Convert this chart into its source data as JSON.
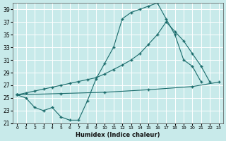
{
  "xlabel": "Humidex (Indice chaleur)",
  "bg_color": "#c8eaea",
  "grid_color": "#ffffff",
  "line_color": "#1a6b6b",
  "xlim_min": -0.5,
  "xlim_max": 23.5,
  "ylim_min": 21,
  "ylim_max": 40,
  "yticks": [
    21,
    23,
    25,
    27,
    29,
    31,
    33,
    35,
    37,
    39
  ],
  "xticks": [
    0,
    1,
    2,
    3,
    4,
    5,
    6,
    7,
    8,
    9,
    10,
    11,
    12,
    13,
    14,
    15,
    16,
    17,
    18,
    19,
    20,
    21,
    22,
    23
  ],
  "curve_x": [
    0,
    1,
    2,
    3,
    4,
    5,
    6,
    7,
    8,
    9,
    10,
    11,
    12,
    13,
    14,
    15,
    16,
    17,
    18,
    19,
    20,
    21
  ],
  "curve_y": [
    25.5,
    25.0,
    23.5,
    23.0,
    23.5,
    22.0,
    21.5,
    21.5,
    24.5,
    28.0,
    30.5,
    33.0,
    37.5,
    38.5,
    39.0,
    39.5,
    40.0,
    37.5,
    35.0,
    31.0,
    30.0,
    27.5
  ],
  "diag_x": [
    0,
    1,
    2,
    3,
    4,
    5,
    6,
    7,
    8,
    9,
    10,
    11,
    12,
    13,
    14,
    15,
    16,
    17,
    18,
    19,
    20,
    21,
    22
  ],
  "diag_y": [
    25.5,
    25.8,
    26.1,
    26.4,
    26.7,
    27.0,
    27.3,
    27.6,
    27.9,
    28.2,
    28.8,
    29.5,
    30.2,
    31.0,
    32.0,
    33.5,
    35.0,
    37.0,
    35.5,
    34.0,
    32.0,
    30.0,
    27.5
  ],
  "flat_x": [
    0,
    5,
    10,
    15,
    20,
    23
  ],
  "flat_y": [
    25.5,
    25.7,
    25.9,
    26.3,
    26.8,
    27.5
  ]
}
